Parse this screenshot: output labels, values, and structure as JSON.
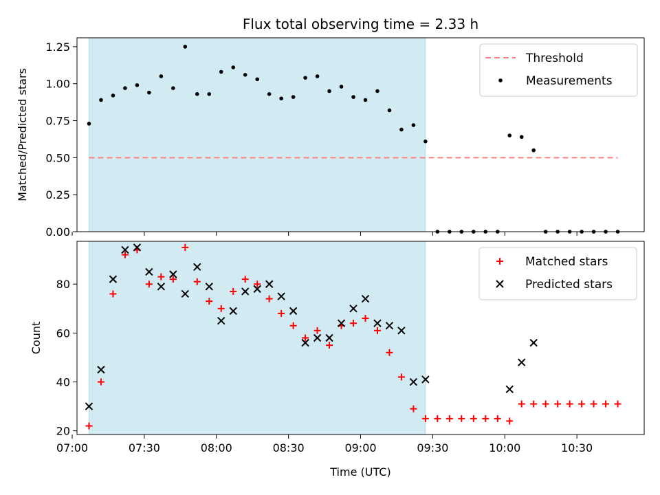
{
  "chart_data": [
    {
      "type": "scatter",
      "title": "Flux total observing time = 2.33 h",
      "ylabel": "Matched/Predicted stars",
      "xlabel": "",
      "xlim": [
        "07:02",
        "10:58"
      ],
      "ylim": [
        0,
        1.31
      ],
      "yticks": [
        0.0,
        0.25,
        0.5,
        0.75,
        1.0,
        1.25
      ],
      "ytick_labels": [
        "0.00",
        "0.25",
        "0.50",
        "0.75",
        "1.00",
        "1.25"
      ],
      "xticks": [
        "07:00",
        "07:30",
        "08:00",
        "08:30",
        "09:00",
        "09:30",
        "10:00",
        "10:30"
      ],
      "shaded_interval": [
        "07:07",
        "09:27"
      ],
      "shade_color": "#add8e6",
      "legend": {
        "placement": "top-right",
        "entries": [
          "Threshold",
          "Measurements"
        ]
      },
      "series": [
        {
          "name": "Threshold",
          "style": "dashed-line",
          "color": "#ff7f7f",
          "x": [
            "07:07",
            "10:47"
          ],
          "values": [
            0.5,
            0.5
          ]
        },
        {
          "name": "Measurements",
          "style": "dot",
          "color": "#000000",
          "x": [
            "07:07",
            "07:12",
            "07:17",
            "07:22",
            "07:27",
            "07:32",
            "07:37",
            "07:42",
            "07:47",
            "07:52",
            "07:57",
            "08:02",
            "08:07",
            "08:12",
            "08:17",
            "08:22",
            "08:27",
            "08:32",
            "08:37",
            "08:42",
            "08:47",
            "08:52",
            "08:57",
            "09:02",
            "09:07",
            "09:12",
            "09:17",
            "09:22",
            "09:27",
            "09:32",
            "09:37",
            "09:42",
            "09:47",
            "09:52",
            "09:57",
            "10:02",
            "10:07",
            "10:12",
            "10:17",
            "10:22",
            "10:27",
            "10:32",
            "10:37",
            "10:42",
            "10:47"
          ],
          "values": [
            0.73,
            0.89,
            0.92,
            0.97,
            0.99,
            0.94,
            1.05,
            0.97,
            1.25,
            0.93,
            0.93,
            1.08,
            1.11,
            1.06,
            1.03,
            0.93,
            0.9,
            0.91,
            1.04,
            1.05,
            0.95,
            0.98,
            0.91,
            0.89,
            0.95,
            0.82,
            0.69,
            0.72,
            0.61,
            0.0,
            0.0,
            0.0,
            0.0,
            0.0,
            0.0,
            0.65,
            0.64,
            0.55,
            0.0,
            0.0,
            0.0,
            0.0,
            0.0,
            0.0,
            0.0
          ]
        }
      ]
    },
    {
      "type": "scatter",
      "title": "",
      "ylabel": "Count",
      "xlabel": "Time (UTC)",
      "xlim": [
        "07:02",
        "10:58"
      ],
      "ylim": [
        18.5,
        97.5
      ],
      "yticks": [
        20,
        40,
        60,
        80
      ],
      "ytick_labels": [
        "20",
        "40",
        "60",
        "80"
      ],
      "xticks": [
        "07:00",
        "07:30",
        "08:00",
        "08:30",
        "09:00",
        "09:30",
        "10:00",
        "10:30"
      ],
      "shaded_interval": [
        "07:07",
        "09:27"
      ],
      "shade_color": "#add8e6",
      "legend": {
        "placement": "top-right",
        "entries": [
          "Matched stars",
          "Predicted stars"
        ]
      },
      "series": [
        {
          "name": "Matched stars",
          "style": "plus",
          "color": "#ff0000",
          "x": [
            "07:07",
            "07:12",
            "07:17",
            "07:22",
            "07:27",
            "07:32",
            "07:37",
            "07:42",
            "07:47",
            "07:52",
            "07:57",
            "08:02",
            "08:07",
            "08:12",
            "08:17",
            "08:22",
            "08:27",
            "08:32",
            "08:37",
            "08:42",
            "08:47",
            "08:52",
            "08:57",
            "09:02",
            "09:07",
            "09:12",
            "09:17",
            "09:22",
            "09:27",
            "09:32",
            "09:37",
            "09:42",
            "09:47",
            "09:52",
            "09:57",
            "10:02",
            "10:07",
            "10:12",
            "10:17",
            "10:22",
            "10:27",
            "10:32",
            "10:37",
            "10:42",
            "10:47"
          ],
          "values": [
            22,
            40,
            76,
            92,
            94,
            80,
            83,
            82,
            95,
            81,
            73,
            70,
            77,
            82,
            80,
            74,
            68,
            63,
            58,
            61,
            55,
            63,
            64,
            66,
            61,
            52,
            42,
            29,
            25,
            25,
            25,
            25,
            25,
            25,
            25,
            24,
            31,
            31,
            31,
            31,
            31,
            31,
            31,
            31,
            31
          ]
        },
        {
          "name": "Predicted stars",
          "style": "x",
          "color": "#000000",
          "x": [
            "07:07",
            "07:12",
            "07:17",
            "07:22",
            "07:27",
            "07:32",
            "07:37",
            "07:42",
            "07:47",
            "07:52",
            "07:57",
            "08:02",
            "08:07",
            "08:12",
            "08:17",
            "08:22",
            "08:27",
            "08:32",
            "08:37",
            "08:42",
            "08:47",
            "08:52",
            "08:57",
            "09:02",
            "09:07",
            "09:12",
            "09:17",
            "09:22",
            "09:27",
            "10:02",
            "10:07",
            "10:12"
          ],
          "values": [
            30,
            45,
            82,
            94,
            95,
            85,
            79,
            84,
            76,
            87,
            79,
            65,
            69,
            77,
            78,
            80,
            75,
            69,
            56,
            58,
            58,
            64,
            70,
            74,
            64,
            63,
            61,
            40,
            41,
            37,
            48,
            56
          ]
        }
      ]
    }
  ]
}
